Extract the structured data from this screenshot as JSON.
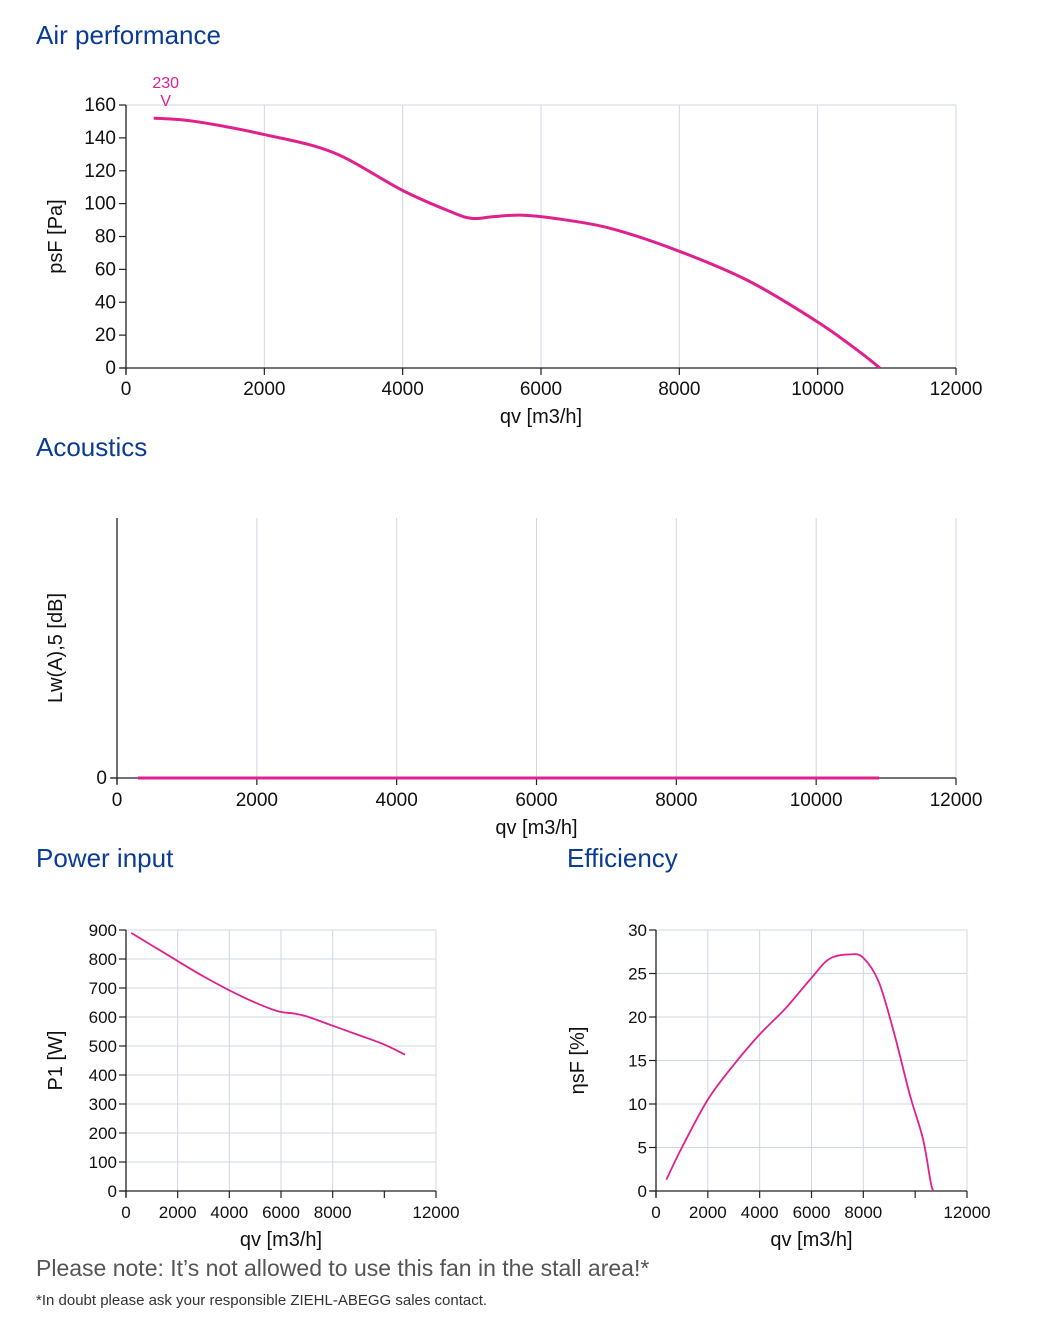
{
  "sections": {
    "air_performance": "Air performance",
    "acoustics": "Acoustics",
    "power_input": "Power input",
    "efficiency": "Efficiency"
  },
  "note": "Please note: It’s not allowed to use this fan in the stall area!*",
  "footnote": "*In doubt please ask your responsible ZIEHL-ABEGG sales contact.",
  "colors": {
    "curve": "#e0208c",
    "grid": "#d0d8e4",
    "axis": "#222222",
    "title": "#0a3c96"
  },
  "chart_data": [
    {
      "id": "air",
      "type": "line",
      "xlabel": "qv [m3/h]",
      "ylabel": "psF [Pa]",
      "xlim": [
        0,
        12000
      ],
      "ylim": [
        0,
        160
      ],
      "xticks": [
        0,
        2000,
        4000,
        6000,
        8000,
        10000,
        12000
      ],
      "yticks": [
        0,
        20,
        40,
        60,
        80,
        100,
        120,
        140,
        160
      ],
      "grid": "vertical",
      "curve_label": [
        "230",
        "V"
      ],
      "series": [
        {
          "values": [
            [
              400,
              152
            ],
            [
              1000,
              150
            ],
            [
              2000,
              142
            ],
            [
              3000,
              131
            ],
            [
              4000,
              108
            ],
            [
              4700,
              95
            ],
            [
              5000,
              91
            ],
            [
              5300,
              92
            ],
            [
              5700,
              93
            ],
            [
              6200,
              91
            ],
            [
              7000,
              85
            ],
            [
              8000,
              71
            ],
            [
              9000,
              53
            ],
            [
              10000,
              28
            ],
            [
              10600,
              10
            ],
            [
              10900,
              0
            ]
          ]
        }
      ]
    },
    {
      "id": "acoustics",
      "type": "line",
      "xlabel": "qv [m3/h]",
      "ylabel": "Lw(A),5 [dB]",
      "xlim": [
        0,
        12000
      ],
      "ylim": [
        0,
        1
      ],
      "xticks": [
        0,
        2000,
        4000,
        6000,
        8000,
        10000,
        12000
      ],
      "yticks": [
        0
      ],
      "grid": "vertical",
      "series": [
        {
          "values": [
            [
              300,
              0
            ],
            [
              10900,
              0
            ]
          ]
        }
      ]
    },
    {
      "id": "power",
      "type": "line",
      "xlabel": "qv [m3/h]",
      "ylabel": "P1 [W]",
      "xlim": [
        0,
        12000
      ],
      "ylim": [
        0,
        900
      ],
      "xticks": [
        0,
        2000,
        4000,
        6000,
        8000,
        12000
      ],
      "yticks": [
        0,
        100,
        200,
        300,
        400,
        500,
        600,
        700,
        800,
        900
      ],
      "grid": "both",
      "series": [
        {
          "values": [
            [
              200,
              890
            ],
            [
              1500,
              820
            ],
            [
              3000,
              740
            ],
            [
              4500,
              670
            ],
            [
              5800,
              622
            ],
            [
              6500,
              612
            ],
            [
              7000,
              602
            ],
            [
              8000,
              570
            ],
            [
              9000,
              538
            ],
            [
              10000,
              505
            ],
            [
              10800,
              470
            ]
          ]
        }
      ]
    },
    {
      "id": "efficiency",
      "type": "line",
      "xlabel": "qv [m3/h]",
      "ylabel": "ηsF [%]",
      "xlim": [
        0,
        12000
      ],
      "ylim": [
        0,
        30
      ],
      "xticks": [
        0,
        2000,
        4000,
        6000,
        8000,
        12000
      ],
      "yticks": [
        0,
        5,
        10,
        15,
        20,
        25,
        30
      ],
      "grid": "both",
      "series": [
        {
          "values": [
            [
              400,
              1.3
            ],
            [
              1000,
              5
            ],
            [
              2000,
              10.5
            ],
            [
              3000,
              14.5
            ],
            [
              4000,
              18
            ],
            [
              5000,
              21
            ],
            [
              6000,
              24.5
            ],
            [
              6700,
              26.7
            ],
            [
              7500,
              27.2
            ],
            [
              8000,
              26.8
            ],
            [
              8600,
              24
            ],
            [
              9200,
              18
            ],
            [
              9800,
              11
            ],
            [
              10300,
              6
            ],
            [
              10600,
              1
            ],
            [
              10700,
              0
            ]
          ]
        }
      ]
    }
  ]
}
